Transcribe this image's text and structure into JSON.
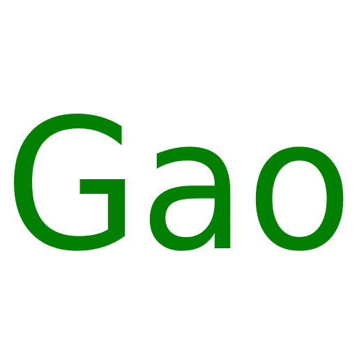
{
  "text": "Gao",
  "colors": {
    "background": "#ffffff",
    "text": "#008000"
  }
}
